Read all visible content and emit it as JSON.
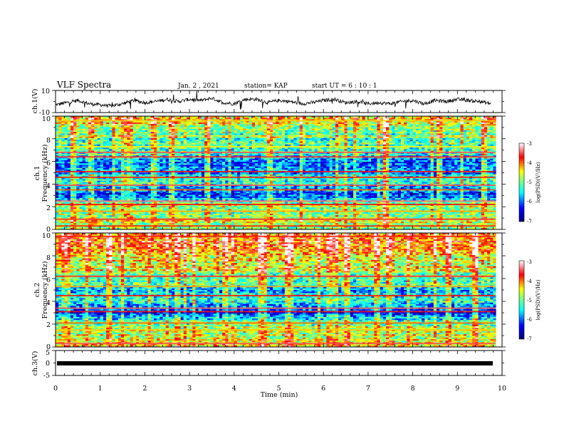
{
  "header": {
    "title": "VLF Spectra",
    "date": "Jan. 2 , 2021",
    "station": "station= KAP",
    "start": "start UT = 6 : 10 : 1"
  },
  "chart_data": [
    {
      "type": "line",
      "ylabel": "ch.1(V)",
      "ylim": [
        -10,
        10
      ],
      "yticks": [
        "10",
        "-10"
      ],
      "x": [
        0.0,
        0.25,
        0.5,
        0.75,
        1.0,
        1.25,
        1.5,
        1.75,
        2.0,
        2.25,
        2.5,
        2.75,
        3.0,
        3.25,
        3.5,
        3.75,
        4.0,
        4.25,
        4.5,
        4.75,
        5.0,
        5.25,
        5.5,
        5.75,
        6.0,
        6.25,
        6.5,
        6.75,
        7.0,
        7.25,
        7.5,
        7.75,
        8.0,
        8.25,
        8.5,
        8.75,
        9.0,
        9.25,
        9.5,
        9.75
      ],
      "y": [
        -3,
        -1,
        1,
        -2,
        -3,
        -4,
        -2,
        1,
        -1,
        0,
        2,
        0,
        2,
        1,
        3,
        -1,
        -2,
        2,
        2,
        -1,
        1,
        0,
        -2,
        -1,
        1,
        2,
        -1,
        0,
        -2,
        -1,
        -2,
        0,
        1,
        -2,
        1,
        0,
        2,
        1,
        0,
        -2
      ]
    },
    {
      "type": "heatmap",
      "ylabel": "ch.1\nFrequency (kHz)",
      "ylim": [
        0,
        10
      ],
      "yticks": [
        "0",
        "2",
        "4",
        "6",
        "8",
        "10"
      ],
      "colorbar": {
        "ticks": [
          "-3",
          "-4",
          "-5",
          "-6",
          "-7"
        ],
        "label": "log(PSD)(V²/Hz)",
        "range": [
          -7,
          -3
        ]
      },
      "bands_khz": [
        {
          "f": 9.6,
          "v": -4.3
        },
        {
          "f": 7.3,
          "v": -4.4
        },
        {
          "f": 6.8,
          "v": -3.5
        },
        {
          "f": 6.4,
          "v": -3.6
        },
        {
          "f": 5.1,
          "v": -3.7
        },
        {
          "f": 4.6,
          "v": -3.8
        },
        {
          "f": 3.9,
          "v": -3.5
        },
        {
          "f": 3.5,
          "v": -4.0
        },
        {
          "f": 2.5,
          "v": -3.4
        },
        {
          "f": 2.2,
          "v": -3.7
        },
        {
          "f": 1.6,
          "v": -4.2
        },
        {
          "f": 0.9,
          "v": -3.6
        },
        {
          "f": 0.3,
          "v": -3.8
        }
      ],
      "profile": [
        {
          "f": 10.0,
          "v": -4.5
        },
        {
          "f": 9.0,
          "v": -4.7
        },
        {
          "f": 8.0,
          "v": -5.0
        },
        {
          "f": 7.0,
          "v": -5.3
        },
        {
          "f": 6.0,
          "v": -5.8
        },
        {
          "f": 5.0,
          "v": -5.8
        },
        {
          "f": 4.0,
          "v": -5.4
        },
        {
          "f": 3.0,
          "v": -6.2
        },
        {
          "f": 2.4,
          "v": -5.0
        },
        {
          "f": 2.0,
          "v": -4.8
        },
        {
          "f": 1.0,
          "v": -4.7
        },
        {
          "f": 0.0,
          "v": -4.8
        }
      ],
      "bursts_min": [
        0.4,
        0.8,
        1.3,
        1.6,
        2.2,
        2.6,
        3.4,
        3.9,
        4.8,
        5.5,
        6.3,
        6.7,
        7.4,
        8.6,
        9.1,
        9.6
      ]
    },
    {
      "type": "heatmap",
      "ylabel": "ch.2\nFrequency (kHz)",
      "ylim": [
        0,
        10
      ],
      "yticks": [
        "0",
        "2",
        "4",
        "6",
        "8",
        "10"
      ],
      "colorbar": {
        "ticks": [
          "-3",
          "-4",
          "-5",
          "-6",
          "-7"
        ],
        "label": "log(PSD)(V²/Hz)",
        "range": [
          -7,
          -3
        ]
      },
      "bands_khz": [
        {
          "f": 9.7,
          "v": -3.8
        },
        {
          "f": 6.2,
          "v": -3.6
        },
        {
          "f": 5.3,
          "v": -4.2
        },
        {
          "f": 4.5,
          "v": -3.8
        },
        {
          "f": 3.4,
          "v": -3.5
        },
        {
          "f": 3.1,
          "v": -3.7
        },
        {
          "f": 2.1,
          "v": -4.0
        },
        {
          "f": 1.5,
          "v": -4.3
        },
        {
          "f": 0.3,
          "v": -3.5
        }
      ],
      "profile": [
        {
          "f": 10.0,
          "v": -3.9
        },
        {
          "f": 9.0,
          "v": -4.0
        },
        {
          "f": 8.0,
          "v": -4.4
        },
        {
          "f": 7.0,
          "v": -4.6
        },
        {
          "f": 6.0,
          "v": -5.0
        },
        {
          "f": 5.0,
          "v": -5.7
        },
        {
          "f": 4.0,
          "v": -5.5
        },
        {
          "f": 3.0,
          "v": -6.3
        },
        {
          "f": 2.5,
          "v": -5.6
        },
        {
          "f": 2.0,
          "v": -4.9
        },
        {
          "f": 1.0,
          "v": -4.7
        },
        {
          "f": 0.0,
          "v": -4.6
        }
      ],
      "bursts_min": [
        0.3,
        0.7,
        1.2,
        1.5,
        2.1,
        2.5,
        3.1,
        3.8,
        4.6,
        5.2,
        5.9,
        6.5,
        7.2,
        7.9,
        8.8,
        9.4
      ]
    },
    {
      "type": "line",
      "ylabel": "ch.3(V)",
      "ylim": [
        -5,
        5
      ],
      "yticks": [
        "5",
        "0",
        "-5"
      ],
      "x": [
        0,
        9.85
      ],
      "y": [
        0,
        0
      ],
      "xlabel": "Time (min)",
      "xlim": [
        0,
        10
      ],
      "xticks": [
        "0",
        "1",
        "2",
        "3",
        "4",
        "5",
        "6",
        "7",
        "8",
        "9",
        "10"
      ]
    }
  ]
}
